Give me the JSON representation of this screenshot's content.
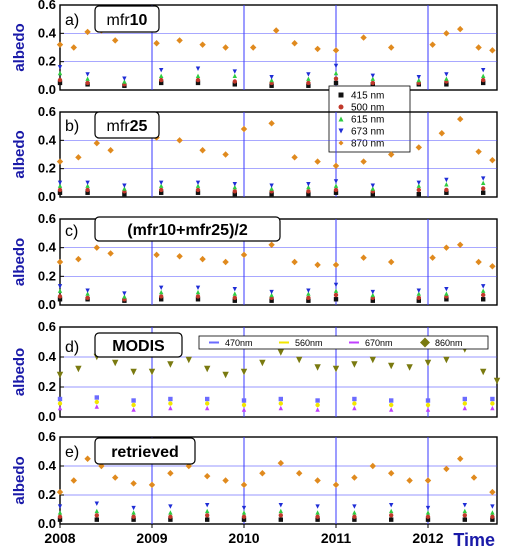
{
  "chart_data": [
    {
      "type": "scatter",
      "panel_label": "a)",
      "title_plain": "mfr",
      "title_bold": "10",
      "ylabel": "albedo",
      "yticks": [
        "0.0",
        "0.2",
        "0.4",
        "0.6"
      ],
      "ylim": [
        0,
        0.6
      ],
      "xlim": [
        2008,
        2012.75
      ],
      "legend_position": "right, below title",
      "legend": [
        "415 nm",
        "500 nm",
        "615 nm",
        "673 nm",
        "870 nm"
      ],
      "series": [
        {
          "name": "415 nm",
          "color": "#111111",
          "marker": "square",
          "x": [
            2008.0,
            2008.3,
            2008.7,
            2009.1,
            2009.5,
            2009.9,
            2010.3,
            2010.7,
            2011.0,
            2011.4,
            2011.9,
            2012.2,
            2012.6
          ],
          "y": [
            0.05,
            0.04,
            0.03,
            0.05,
            0.05,
            0.04,
            0.03,
            0.03,
            0.05,
            0.04,
            0.04,
            0.04,
            0.05
          ]
        },
        {
          "name": "500 nm",
          "color": "#c0392b",
          "marker": "circle",
          "x": [
            2008.0,
            2008.3,
            2008.7,
            2009.1,
            2009.5,
            2009.9,
            2010.3,
            2010.7,
            2011.0,
            2011.4,
            2011.9,
            2012.2,
            2012.6
          ],
          "y": [
            0.07,
            0.05,
            0.04,
            0.07,
            0.07,
            0.06,
            0.05,
            0.05,
            0.08,
            0.05,
            0.05,
            0.06,
            0.07
          ]
        },
        {
          "name": "615 nm",
          "color": "#2ecc40",
          "marker": "triangle-up",
          "x": [
            2008.0,
            2008.3,
            2008.7,
            2009.1,
            2009.5,
            2009.9,
            2010.3,
            2010.7,
            2011.0,
            2011.4,
            2011.9,
            2012.2,
            2012.6
          ],
          "y": [
            0.12,
            0.08,
            0.06,
            0.1,
            0.1,
            0.1,
            0.07,
            0.08,
            0.12,
            0.08,
            0.07,
            0.08,
            0.1
          ]
        },
        {
          "name": "673 nm",
          "color": "#1f2dd6",
          "marker": "triangle-down",
          "x": [
            2008.0,
            2008.3,
            2008.7,
            2009.1,
            2009.5,
            2009.9,
            2010.3,
            2010.7,
            2011.0,
            2011.4,
            2011.9,
            2012.2,
            2012.6
          ],
          "y": [
            0.16,
            0.11,
            0.08,
            0.14,
            0.15,
            0.13,
            0.09,
            0.11,
            0.17,
            0.1,
            0.09,
            0.11,
            0.14
          ]
        },
        {
          "name": "870 nm",
          "color": "#e08a1e",
          "marker": "diamond",
          "x": [
            2008.0,
            2008.15,
            2008.3,
            2008.45,
            2008.6,
            2009.05,
            2009.3,
            2009.55,
            2009.8,
            2010.1,
            2010.35,
            2010.55,
            2010.8,
            2011.0,
            2011.3,
            2011.6,
            2012.05,
            2012.2,
            2012.35,
            2012.55,
            2012.7
          ],
          "y": [
            0.32,
            0.3,
            0.41,
            0.42,
            0.35,
            0.33,
            0.35,
            0.32,
            0.3,
            0.3,
            0.42,
            0.33,
            0.29,
            0.28,
            0.37,
            0.3,
            0.32,
            0.4,
            0.43,
            0.3,
            0.28
          ]
        }
      ]
    },
    {
      "type": "scatter",
      "panel_label": "b)",
      "title_plain": "mfr",
      "title_bold": "25",
      "ylabel": "albedo",
      "yticks": [
        "0.0",
        "0.2",
        "0.4",
        "0.6"
      ],
      "ylim": [
        0,
        0.6
      ],
      "xlim": [
        2008,
        2012.75
      ],
      "series": [
        {
          "name": "415 nm",
          "color": "#111111",
          "x": [
            2008.0,
            2008.3,
            2008.7,
            2009.1,
            2009.5,
            2009.9,
            2010.3,
            2010.7,
            2011.0,
            2011.4,
            2011.9,
            2012.2,
            2012.6
          ],
          "y": [
            0.03,
            0.03,
            0.02,
            0.03,
            0.03,
            0.02,
            0.02,
            0.02,
            0.03,
            0.02,
            0.02,
            0.03,
            0.03
          ]
        },
        {
          "name": "500 nm",
          "color": "#c0392b",
          "x": [
            2008.0,
            2008.3,
            2008.7,
            2009.1,
            2009.5,
            2009.9,
            2010.3,
            2010.7,
            2011.0,
            2011.4,
            2011.9,
            2012.2,
            2012.6
          ],
          "y": [
            0.05,
            0.05,
            0.04,
            0.05,
            0.05,
            0.04,
            0.04,
            0.04,
            0.05,
            0.04,
            0.05,
            0.05,
            0.06
          ]
        },
        {
          "name": "615 nm",
          "color": "#2ecc40",
          "x": [
            2008.0,
            2008.3,
            2008.7,
            2009.1,
            2009.5,
            2009.9,
            2010.3,
            2010.7,
            2011.0,
            2011.4,
            2011.9,
            2012.2,
            2012.6
          ],
          "y": [
            0.08,
            0.08,
            0.06,
            0.08,
            0.08,
            0.07,
            0.06,
            0.07,
            0.08,
            0.06,
            0.08,
            0.09,
            0.1
          ]
        },
        {
          "name": "673 nm",
          "color": "#1f2dd6",
          "x": [
            2008.0,
            2008.3,
            2008.7,
            2009.1,
            2009.5,
            2009.9,
            2010.3,
            2010.7,
            2011.0,
            2011.4,
            2011.9,
            2012.2,
            2012.6
          ],
          "y": [
            0.1,
            0.1,
            0.08,
            0.1,
            0.1,
            0.09,
            0.08,
            0.09,
            0.11,
            0.08,
            0.1,
            0.12,
            0.13
          ]
        },
        {
          "name": "870 nm",
          "color": "#e08a1e",
          "x": [
            2008.0,
            2008.2,
            2008.4,
            2008.55,
            2009.05,
            2009.3,
            2009.55,
            2009.8,
            2010.0,
            2010.3,
            2010.55,
            2010.8,
            2011.0,
            2011.3,
            2011.6,
            2011.9,
            2012.15,
            2012.35,
            2012.55,
            2012.7
          ],
          "y": [
            0.25,
            0.28,
            0.38,
            0.33,
            0.42,
            0.4,
            0.33,
            0.3,
            0.48,
            0.52,
            0.28,
            0.25,
            0.22,
            0.25,
            0.3,
            0.35,
            0.45,
            0.55,
            0.32,
            0.26
          ]
        }
      ]
    },
    {
      "type": "scatter",
      "panel_label": "c)",
      "title_text": "(mfr10+mfr25)/2",
      "ylabel": "albedo",
      "yticks": [
        "0.0",
        "0.2",
        "0.4",
        "0.6"
      ],
      "ylim": [
        0,
        0.6
      ],
      "xlim": [
        2008,
        2012.75
      ],
      "series": [
        {
          "name": "415 nm",
          "color": "#111111",
          "x": [
            2008.0,
            2008.3,
            2008.7,
            2009.1,
            2009.5,
            2009.9,
            2010.3,
            2010.7,
            2011.0,
            2011.4,
            2011.9,
            2012.2,
            2012.6
          ],
          "y": [
            0.04,
            0.04,
            0.03,
            0.04,
            0.04,
            0.03,
            0.03,
            0.03,
            0.04,
            0.03,
            0.03,
            0.04,
            0.04
          ]
        },
        {
          "name": "500 nm",
          "color": "#c0392b",
          "x": [
            2008.0,
            2008.3,
            2008.7,
            2009.1,
            2009.5,
            2009.9,
            2010.3,
            2010.7,
            2011.0,
            2011.4,
            2011.9,
            2012.2,
            2012.6
          ],
          "y": [
            0.06,
            0.05,
            0.04,
            0.06,
            0.06,
            0.05,
            0.05,
            0.05,
            0.07,
            0.05,
            0.05,
            0.06,
            0.07
          ]
        },
        {
          "name": "615 nm",
          "color": "#2ecc40",
          "x": [
            2008.0,
            2008.3,
            2008.7,
            2009.1,
            2009.5,
            2009.9,
            2010.3,
            2010.7,
            2011.0,
            2011.4,
            2011.9,
            2012.2,
            2012.6
          ],
          "y": [
            0.1,
            0.08,
            0.06,
            0.09,
            0.09,
            0.08,
            0.07,
            0.08,
            0.1,
            0.07,
            0.08,
            0.08,
            0.1
          ]
        },
        {
          "name": "673 nm",
          "color": "#1f2dd6",
          "x": [
            2008.0,
            2008.3,
            2008.7,
            2009.1,
            2009.5,
            2009.9,
            2010.3,
            2010.7,
            2011.0,
            2011.4,
            2011.9,
            2012.2,
            2012.6
          ],
          "y": [
            0.13,
            0.1,
            0.08,
            0.12,
            0.12,
            0.11,
            0.09,
            0.1,
            0.14,
            0.09,
            0.1,
            0.11,
            0.13
          ]
        },
        {
          "name": "870 nm",
          "color": "#e08a1e",
          "x": [
            2008.0,
            2008.2,
            2008.4,
            2008.55,
            2009.05,
            2009.3,
            2009.55,
            2009.8,
            2010.0,
            2010.3,
            2010.55,
            2010.8,
            2011.0,
            2011.3,
            2011.6,
            2012.05,
            2012.2,
            2012.35,
            2012.55,
            2012.7
          ],
          "y": [
            0.3,
            0.32,
            0.4,
            0.36,
            0.35,
            0.34,
            0.32,
            0.3,
            0.35,
            0.42,
            0.3,
            0.28,
            0.28,
            0.33,
            0.3,
            0.33,
            0.4,
            0.42,
            0.3,
            0.27
          ]
        }
      ]
    },
    {
      "type": "scatter",
      "panel_label": "d)",
      "title_text": "MODIS",
      "ylabel": "albedo",
      "yticks": [
        "0.0",
        "0.2",
        "0.4",
        "0.6"
      ],
      "ylim": [
        0,
        0.6
      ],
      "xlim": [
        2008,
        2012.75
      ],
      "legend_position": "top-right, horizontal",
      "legend": [
        "470nm",
        "560nm",
        "670nm",
        "860nm"
      ],
      "series": [
        {
          "name": "470nm",
          "color": "#6b6bff",
          "x": [
            2008.0,
            2008.4,
            2008.8,
            2009.2,
            2009.6,
            2010.0,
            2010.4,
            2010.8,
            2011.2,
            2011.6,
            2012.0,
            2012.4,
            2012.7
          ],
          "y": [
            0.12,
            0.13,
            0.11,
            0.12,
            0.12,
            0.11,
            0.12,
            0.11,
            0.12,
            0.11,
            0.11,
            0.12,
            0.12
          ]
        },
        {
          "name": "560nm",
          "color": "#f2e600",
          "x": [
            2008.0,
            2008.4,
            2008.8,
            2009.2,
            2009.6,
            2010.0,
            2010.4,
            2010.8,
            2011.2,
            2011.6,
            2012.0,
            2012.4,
            2012.7
          ],
          "y": [
            0.09,
            0.1,
            0.08,
            0.09,
            0.09,
            0.08,
            0.09,
            0.08,
            0.09,
            0.08,
            0.08,
            0.09,
            0.09
          ]
        },
        {
          "name": "670nm",
          "color": "#c040ff",
          "x": [
            2008.0,
            2008.4,
            2008.8,
            2009.2,
            2009.6,
            2010.0,
            2010.4,
            2010.8,
            2011.2,
            2011.6,
            2012.0,
            2012.4,
            2012.7
          ],
          "y": [
            0.06,
            0.07,
            0.05,
            0.06,
            0.06,
            0.05,
            0.06,
            0.05,
            0.06,
            0.05,
            0.05,
            0.06,
            0.06
          ]
        },
        {
          "name": "860nm",
          "color": "#7a7a10",
          "x": [
            2008.0,
            2008.2,
            2008.4,
            2008.6,
            2008.8,
            2009.0,
            2009.2,
            2009.4,
            2009.6,
            2009.8,
            2010.0,
            2010.2,
            2010.4,
            2010.6,
            2010.8,
            2011.0,
            2011.2,
            2011.4,
            2011.6,
            2011.8,
            2012.0,
            2012.2,
            2012.4,
            2012.6,
            2012.75
          ],
          "y": [
            0.28,
            0.32,
            0.4,
            0.36,
            0.3,
            0.3,
            0.35,
            0.38,
            0.32,
            0.28,
            0.3,
            0.36,
            0.43,
            0.38,
            0.33,
            0.32,
            0.35,
            0.38,
            0.34,
            0.33,
            0.36,
            0.38,
            0.45,
            0.3,
            0.24
          ]
        }
      ]
    },
    {
      "type": "scatter",
      "panel_label": "e)",
      "title_text": "retrieved",
      "ylabel": "albedo",
      "yticks": [
        "0.0",
        "0.2",
        "0.4",
        "0.6"
      ],
      "ylim": [
        0,
        0.6
      ],
      "xlim": [
        2008,
        2012.75
      ],
      "xticks": [
        "2008",
        "2009",
        "2010",
        "2011",
        "2012"
      ],
      "xlabel": "Time",
      "series": [
        {
          "name": "415 nm",
          "color": "#111111",
          "x": [
            2008.0,
            2008.4,
            2008.8,
            2009.2,
            2009.6,
            2010.0,
            2010.4,
            2010.8,
            2011.2,
            2011.6,
            2012.0,
            2012.4,
            2012.7
          ],
          "y": [
            0.03,
            0.03,
            0.03,
            0.03,
            0.03,
            0.03,
            0.03,
            0.03,
            0.03,
            0.03,
            0.03,
            0.03,
            0.03
          ]
        },
        {
          "name": "500 nm",
          "color": "#c0392b",
          "x": [
            2008.0,
            2008.4,
            2008.8,
            2009.2,
            2009.6,
            2010.0,
            2010.4,
            2010.8,
            2011.2,
            2011.6,
            2012.0,
            2012.4,
            2012.7
          ],
          "y": [
            0.05,
            0.06,
            0.05,
            0.05,
            0.06,
            0.05,
            0.06,
            0.05,
            0.05,
            0.06,
            0.05,
            0.06,
            0.05
          ]
        },
        {
          "name": "615 nm",
          "color": "#2ecc40",
          "x": [
            2008.0,
            2008.4,
            2008.8,
            2009.2,
            2009.6,
            2010.0,
            2010.4,
            2010.8,
            2011.2,
            2011.6,
            2012.0,
            2012.4,
            2012.7
          ],
          "y": [
            0.08,
            0.09,
            0.08,
            0.08,
            0.09,
            0.08,
            0.09,
            0.08,
            0.08,
            0.09,
            0.08,
            0.09,
            0.08
          ]
        },
        {
          "name": "673 nm",
          "color": "#1f2dd6",
          "x": [
            2008.0,
            2008.4,
            2008.8,
            2009.2,
            2009.6,
            2010.0,
            2010.4,
            2010.8,
            2011.2,
            2011.6,
            2012.0,
            2012.4,
            2012.7
          ],
          "y": [
            0.12,
            0.14,
            0.11,
            0.12,
            0.13,
            0.11,
            0.13,
            0.12,
            0.12,
            0.13,
            0.11,
            0.13,
            0.12
          ]
        },
        {
          "name": "870 nm",
          "color": "#e08a1e",
          "x": [
            2008.0,
            2008.15,
            2008.3,
            2008.45,
            2008.6,
            2008.8,
            2009.0,
            2009.2,
            2009.4,
            2009.6,
            2009.8,
            2010.0,
            2010.2,
            2010.4,
            2010.6,
            2010.8,
            2011.0,
            2011.2,
            2011.4,
            2011.6,
            2011.8,
            2012.0,
            2012.2,
            2012.35,
            2012.5,
            2012.7
          ],
          "y": [
            0.22,
            0.3,
            0.45,
            0.4,
            0.32,
            0.28,
            0.27,
            0.35,
            0.4,
            0.33,
            0.3,
            0.27,
            0.35,
            0.42,
            0.35,
            0.3,
            0.27,
            0.32,
            0.4,
            0.35,
            0.3,
            0.3,
            0.38,
            0.45,
            0.32,
            0.22
          ]
        }
      ]
    }
  ]
}
